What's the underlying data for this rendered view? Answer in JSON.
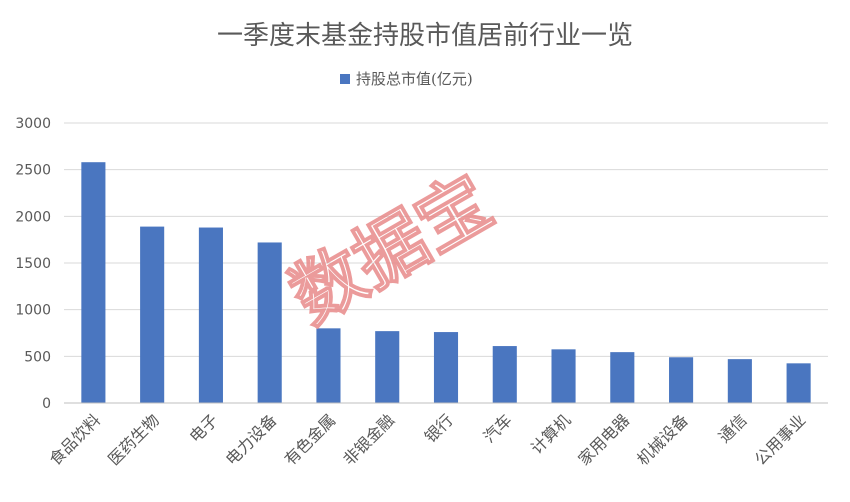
{
  "chart_data": {
    "type": "bar",
    "title": "一季度末基金持股市值居前行业一览",
    "legend": {
      "position": "top",
      "label": "持股总市值(亿元)"
    },
    "categories": [
      "食品饮料",
      "医药生物",
      "电子",
      "电力设备",
      "有色金属",
      "非银金融",
      "银行",
      "汽车",
      "计算机",
      "家用电器",
      "机械设备",
      "通信",
      "公用事业"
    ],
    "series": [
      {
        "name": "持股总市值(亿元)",
        "values": [
          2580,
          1890,
          1880,
          1720,
          800,
          770,
          760,
          610,
          575,
          545,
          490,
          470,
          425
        ]
      }
    ],
    "y_ticks": [
      "0",
      "500",
      "1000",
      "1500",
      "2000",
      "2500",
      "3000"
    ],
    "ylim": [
      0,
      3000
    ],
    "grid": true,
    "bar_color": "#4a76c0"
  },
  "watermark": {
    "text": "数据宝",
    "color": "#e88a8a"
  }
}
